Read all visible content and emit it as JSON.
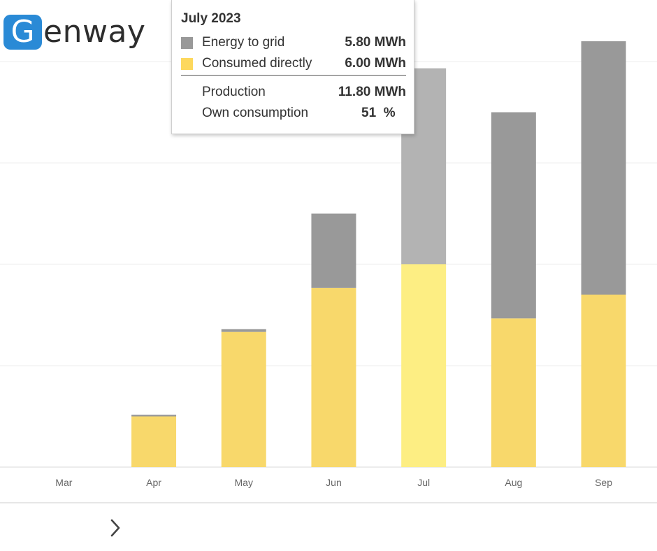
{
  "brand": {
    "logo_letter": "G",
    "logo_rest": "enway",
    "color": "#2a8ad6"
  },
  "tooltip": {
    "title": "July 2023",
    "rows": [
      {
        "label": "Energy to grid",
        "value": "5.80",
        "unit": "MWh",
        "color": "#999999"
      },
      {
        "label": "Consumed directly",
        "value": "6.00",
        "unit": "MWh",
        "color": "#fdd85d"
      }
    ],
    "production": {
      "label": "Production",
      "value": "11.80",
      "unit": "MWh"
    },
    "own_consumption": {
      "label": "Own consumption",
      "value": "51",
      "unit": "%"
    }
  },
  "navigation": {
    "next_icon": "chevron-right-icon"
  },
  "chart_data": {
    "type": "bar",
    "stacked": true,
    "categories": [
      "Mar",
      "Apr",
      "May",
      "Jun",
      "Jul",
      "Aug",
      "Sep"
    ],
    "series": [
      {
        "name": "Consumed directly",
        "values": [
          0,
          1.5,
          4.0,
          5.3,
          6.0,
          4.4,
          5.1
        ],
        "color": "#f8d86b",
        "highlight_color": "#fdee83"
      },
      {
        "name": "Energy to grid",
        "values": [
          0,
          0.05,
          0.08,
          2.2,
          5.8,
          6.1,
          7.5
        ],
        "color": "#999999",
        "highlight_color": "#b3b3b3"
      }
    ],
    "highlighted_category": "Jul",
    "ylim": [
      0,
      12
    ],
    "grid": true,
    "y_ticks_visible": false,
    "xlabel": "",
    "ylabel": ""
  }
}
